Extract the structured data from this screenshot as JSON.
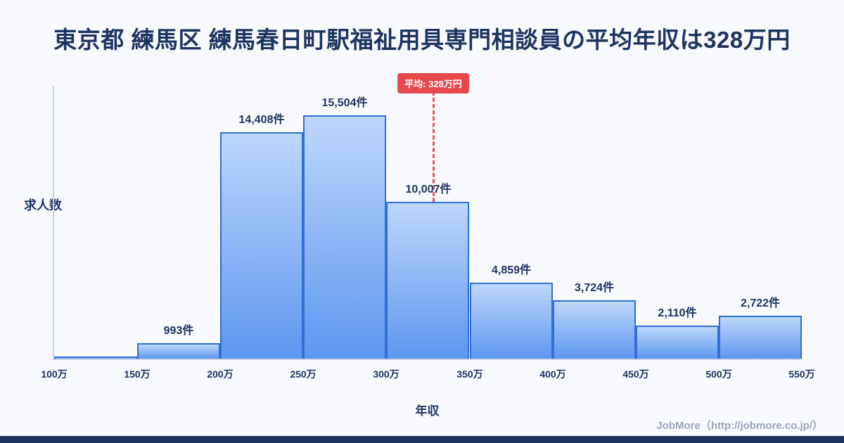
{
  "header": {
    "title": "東京都 練馬区 練馬春日町駅福祉用具専門相談員の平均年収は328万円"
  },
  "chart_data": {
    "type": "bar",
    "title": "東京都 練馬区 練馬春日町駅福祉用具専門相談員の平均年収は328万円",
    "xlabel": "年収",
    "ylabel": "求人数",
    "x_domain": [
      100,
      550
    ],
    "x_ticks": [
      "100万",
      "150万",
      "200万",
      "250万",
      "300万",
      "350万",
      "400万",
      "450万",
      "500万",
      "550万"
    ],
    "bins": [
      {
        "range": "100万-150万",
        "value": 100,
        "label": ""
      },
      {
        "range": "150万-200万",
        "value": 993,
        "label": "993件"
      },
      {
        "range": "200万-250万",
        "value": 14408,
        "label": "14,408件"
      },
      {
        "range": "250万-300万",
        "value": 15504,
        "label": "15,504件"
      },
      {
        "range": "300万-350万",
        "value": 10007,
        "label": "10,007件"
      },
      {
        "range": "350万-400万",
        "value": 4859,
        "label": "4,859件"
      },
      {
        "range": "400万-450万",
        "value": 3724,
        "label": "3,724件"
      },
      {
        "range": "450万-500万",
        "value": 2110,
        "label": "2,110件"
      },
      {
        "range": "500万-550万",
        "value": 2722,
        "label": "2,722件"
      }
    ],
    "average": {
      "value": 328,
      "label": "平均: 328万円"
    },
    "legend": null,
    "grid": false,
    "colors": {
      "bar_top": "#bdd7fb",
      "bar_bottom": "#5d97f0",
      "bar_border": "#2f6fd6",
      "average_line": "#e5484d",
      "title_text": "#1d3461",
      "background": "#f7f9fd",
      "bottom_strip": "#1d3461",
      "credit_text": "#9aa5b8"
    }
  },
  "footer": {
    "credit": "JobMore（http://jobmore.co.jp/）"
  }
}
